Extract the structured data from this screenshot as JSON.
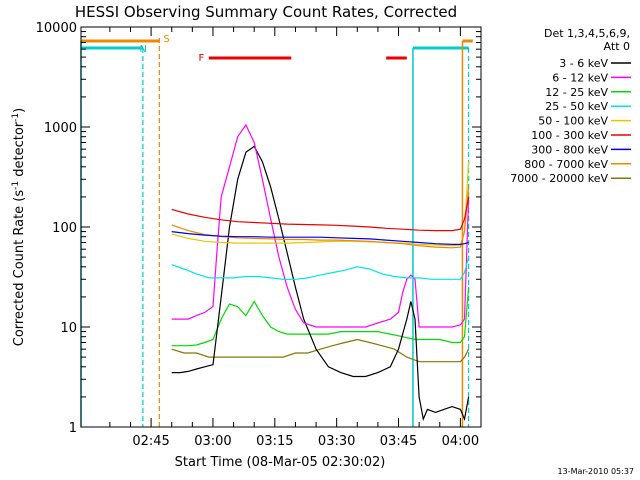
{
  "chart_data": {
    "type": "line",
    "title": "HESSI Observing Summary Count Rates, Corrected",
    "xlabel": "Start Time (08-Mar-05 02:30:02)",
    "ylabel": "Corrected Count Rate (s⁻¹ detector⁻¹)",
    "ylabel_main": "Corrected Count Rate (s",
    "ylabel_mid": " detector",
    "ylabel_end": ")",
    "ylabel_sup": "-1",
    "x_tick_labels": [
      "02:45",
      "03:00",
      "03:15",
      "03:30",
      "03:45",
      "04:00"
    ],
    "x_ticks_minutes": [
      15,
      30,
      45,
      60,
      75,
      90
    ],
    "xlim_minutes": [
      -2,
      95
    ],
    "y_tick_labels": [
      "1",
      "10",
      "100",
      "1000",
      "10000"
    ],
    "y_ticks": [
      1,
      10,
      100,
      1000,
      10000
    ],
    "ylim": [
      1,
      10000
    ],
    "y_scale": "log",
    "footer_date": "13-Mar-2010 05:37",
    "legend": {
      "header1": "Det 1,3,4,5,6,9,",
      "header2": "Att 0",
      "entries": [
        {
          "label": "3 - 6 keV",
          "color": "#000000"
        },
        {
          "label": "6 - 12 keV",
          "color": "#ff00ff"
        },
        {
          "label": "12 - 25 keV",
          "color": "#00dd00"
        },
        {
          "label": "25 - 50 keV",
          "color": "#00e5e5"
        },
        {
          "label": "50 - 100 keV",
          "color": "#e6c800"
        },
        {
          "label": "100 - 300 keV",
          "color": "#ee0000"
        },
        {
          "label": "300 - 800 keV",
          "color": "#0000ee"
        },
        {
          "label": "800 - 7000 keV",
          "color": "#ee8800"
        },
        {
          "label": "7000 - 20000 keV",
          "color": "#887700"
        }
      ]
    },
    "flags": [
      {
        "label": "S",
        "color": "#ee8800"
      },
      {
        "label": "N",
        "color": "#00cccc"
      },
      {
        "label": "F",
        "color": "#ee0000"
      }
    ],
    "series": [
      {
        "name": "3 - 6 keV",
        "color": "#000000",
        "x": [
          20,
          22,
          24,
          26,
          28,
          30,
          32,
          34,
          36,
          38,
          40,
          42,
          44,
          46,
          48,
          50,
          52,
          55,
          58,
          61,
          64,
          67,
          70,
          73,
          75,
          77,
          78,
          79,
          80,
          81,
          82,
          84,
          86,
          88,
          90,
          91,
          92
        ],
        "y": [
          3.5,
          3.5,
          3.6,
          3.8,
          4,
          4.2,
          20,
          100,
          300,
          560,
          640,
          450,
          250,
          120,
          55,
          25,
          12,
          6,
          4,
          3.5,
          3.2,
          3.2,
          3.5,
          4,
          6,
          12,
          18,
          12,
          2,
          1.2,
          1.5,
          1.4,
          1.5,
          1.6,
          1.5,
          1.2,
          2
        ]
      },
      {
        "name": "6 - 12 keV",
        "color": "#ff00ff",
        "x": [
          20,
          22,
          24,
          26,
          28,
          30,
          31,
          32,
          34,
          36,
          38,
          40,
          42,
          44,
          46,
          48,
          50,
          52,
          55,
          58,
          61,
          64,
          67,
          70,
          73,
          75,
          76,
          77,
          78,
          79,
          80,
          81,
          82,
          84,
          86,
          88,
          90,
          91,
          92
        ],
        "y": [
          12,
          12,
          12,
          13,
          14,
          16,
          60,
          200,
          400,
          800,
          1050,
          700,
          300,
          120,
          50,
          25,
          15,
          11,
          10,
          10,
          10,
          10,
          10,
          11,
          12,
          14,
          22,
          30,
          33,
          30,
          10,
          10,
          10,
          10,
          10,
          10,
          10.5,
          12,
          200
        ]
      },
      {
        "name": "12 - 25 keV",
        "color": "#00dd00",
        "x": [
          20,
          22,
          24,
          26,
          28,
          30,
          32,
          34,
          36,
          38,
          40,
          42,
          44,
          46,
          48,
          50,
          52,
          55,
          58,
          61,
          64,
          67,
          70,
          73,
          76,
          79,
          82,
          85,
          88,
          90,
          91,
          92
        ],
        "y": [
          6.5,
          6.5,
          6.5,
          6.6,
          7,
          7.5,
          12,
          17,
          16,
          13,
          18,
          13,
          10,
          9,
          8.5,
          8.5,
          8.5,
          8.5,
          8.5,
          9,
          9,
          9,
          9,
          8.5,
          8,
          7.5,
          7.5,
          7.5,
          7,
          7,
          8,
          25
        ]
      },
      {
        "name": "25 - 50 keV",
        "color": "#00e5e5",
        "x": [
          20,
          23,
          26,
          29,
          32,
          35,
          38,
          41,
          44,
          47,
          50,
          53,
          56,
          59,
          62,
          65,
          68,
          71,
          74,
          77,
          80,
          83,
          86,
          88,
          90,
          91,
          92
        ],
        "y": [
          42,
          38,
          34,
          31,
          31,
          31,
          32,
          32,
          31,
          30,
          30,
          31,
          33,
          35,
          37,
          40,
          38,
          34,
          32,
          31,
          31,
          30,
          30,
          30,
          30,
          35,
          50
        ]
      },
      {
        "name": "50 - 100 keV",
        "color": "#e6c800",
        "x": [
          20,
          24,
          28,
          32,
          36,
          40,
          44,
          48,
          52,
          56,
          60,
          64,
          68,
          72,
          76,
          80,
          84,
          88,
          90,
          91,
          92
        ],
        "y": [
          85,
          77,
          72,
          70,
          69,
          69,
          69,
          69,
          70,
          71,
          72,
          72,
          71,
          70,
          69,
          67,
          66,
          65,
          66,
          90,
          450
        ]
      },
      {
        "name": "100 - 300 keV",
        "color": "#ee0000",
        "x": [
          20,
          24,
          28,
          32,
          36,
          40,
          44,
          48,
          52,
          56,
          60,
          64,
          68,
          72,
          76,
          80,
          84,
          88,
          90,
          91,
          92
        ],
        "y": [
          150,
          135,
          125,
          118,
          113,
          111,
          109,
          107,
          106,
          105,
          104,
          102,
          100,
          97,
          95,
          93,
          92,
          92,
          95,
          120,
          200
        ]
      },
      {
        "name": "300 - 800 keV",
        "color": "#0000ee",
        "x": [
          20,
          24,
          28,
          32,
          36,
          40,
          44,
          48,
          52,
          56,
          60,
          64,
          68,
          72,
          76,
          80,
          84,
          88,
          90,
          91,
          92
        ],
        "y": [
          90,
          86,
          83,
          81,
          80,
          80,
          79,
          79,
          79,
          79,
          78,
          77,
          76,
          74,
          72,
          70,
          68,
          67,
          67,
          68,
          70
        ]
      },
      {
        "name": "800 - 7000 keV",
        "color": "#ee8800",
        "x": [
          20,
          24,
          28,
          32,
          36,
          40,
          44,
          48,
          52,
          56,
          60,
          64,
          68,
          72,
          76,
          80,
          84,
          88,
          90,
          91,
          92
        ],
        "y": [
          105,
          92,
          84,
          80,
          78,
          77,
          76,
          75,
          75,
          74,
          74,
          73,
          72,
          70,
          68,
          65,
          63,
          62,
          63,
          90,
          250
        ]
      },
      {
        "name": "7000 - 20000 keV",
        "color": "#887700",
        "x": [
          20,
          23,
          26,
          29,
          32,
          35,
          38,
          41,
          44,
          47,
          50,
          53,
          56,
          59,
          62,
          65,
          68,
          71,
          74,
          77,
          80,
          83,
          86,
          88,
          90,
          91,
          92
        ],
        "y": [
          6,
          5.5,
          5.5,
          5,
          5,
          5,
          5,
          5,
          5,
          5,
          5.5,
          5.5,
          6,
          6.5,
          7,
          7.5,
          7,
          6.5,
          6,
          5,
          4.5,
          4.5,
          4.5,
          4.5,
          4.5,
          5,
          6
        ]
      }
    ]
  }
}
